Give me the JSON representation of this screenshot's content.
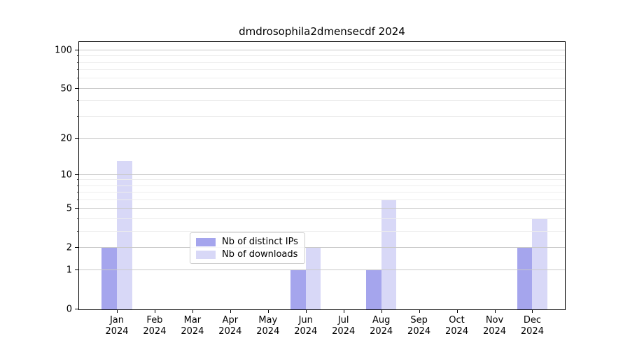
{
  "chart_data": {
    "type": "bar",
    "title": "dmdrosophila2dmensecdf 2024",
    "y_scale": "log1p",
    "ylim": [
      0,
      116
    ],
    "y_ticks": [
      0,
      1,
      2,
      5,
      10,
      20,
      50,
      100
    ],
    "y_minor_ticks": [
      3,
      4,
      6,
      7,
      8,
      9,
      30,
      40,
      60,
      70,
      80,
      90
    ],
    "categories": [
      "Jan",
      "Feb",
      "Mar",
      "Apr",
      "May",
      "Jun",
      "Jul",
      "Aug",
      "Sep",
      "Oct",
      "Nov",
      "Dec"
    ],
    "year": "2024",
    "series": [
      {
        "name": "Nb of distinct IPs",
        "color": "#a5a5ed",
        "values": [
          2,
          0,
          0,
          0,
          0,
          1,
          0,
          1,
          0,
          0,
          0,
          2
        ]
      },
      {
        "name": "Nb of downloads",
        "color": "#d8d8f7",
        "values": [
          13,
          0,
          0,
          0,
          0,
          2,
          0,
          6,
          0,
          0,
          0,
          4
        ]
      }
    ],
    "legend_position": "lower center",
    "grid": true
  },
  "colors": {
    "major_grid": "#c9c9c9",
    "minor_grid": "#ededed",
    "spine": "#000000",
    "background": "#ffffff"
  }
}
